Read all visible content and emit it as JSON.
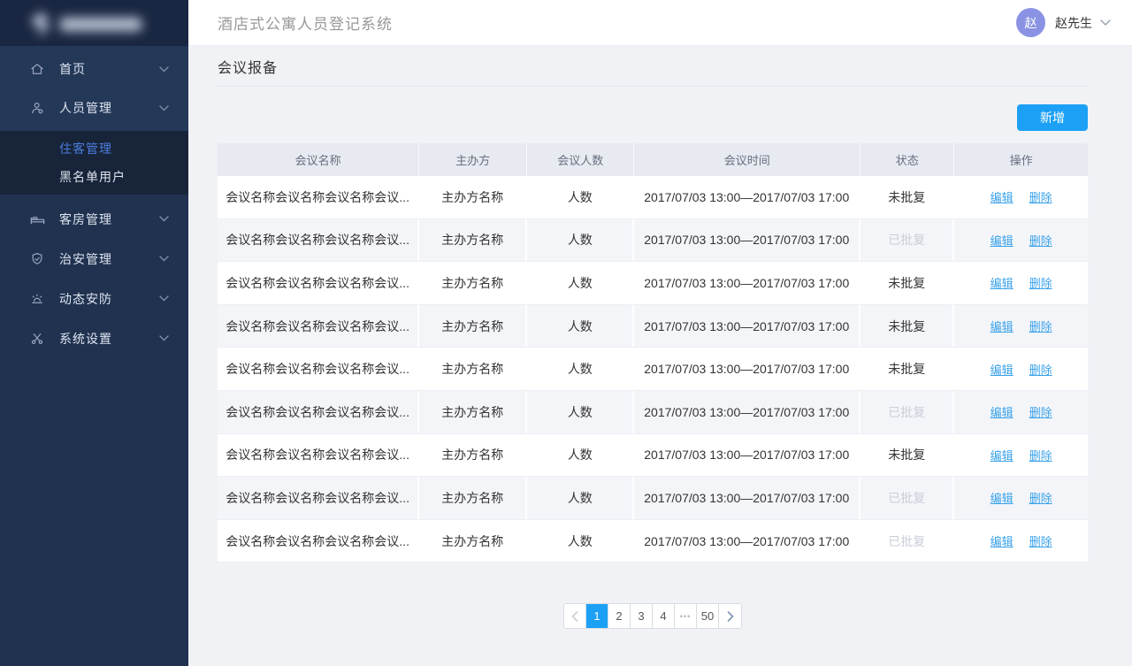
{
  "colors": {
    "primary_blue": "#1ca0f5",
    "link_blue": "#3aa2ea",
    "active_menu_blue": "#4a7ddb",
    "avatar_purple": "#8a92e3",
    "sidebar_bg": "#203250",
    "status_pending_text": "#333333",
    "status_approved_text": "#c9ced8"
  },
  "topbar": {
    "title": "酒店式公寓人员登记系统",
    "user": {
      "avatar_text": "赵",
      "name": "赵先生",
      "menu_icon": "chevron-down-icon"
    }
  },
  "sidebar": {
    "logo_icon": "blurred-logo",
    "items": [
      {
        "label": "首页",
        "icon": "home-icon"
      },
      {
        "label": "人员管理",
        "icon": "user-gear-icon"
      },
      {
        "label": "客房管理",
        "icon": "bed-icon"
      },
      {
        "label": "治安管理",
        "icon": "shield-check-icon"
      },
      {
        "label": "动态安防",
        "icon": "alarm-icon"
      },
      {
        "label": "系统设置",
        "icon": "scissors-icon"
      }
    ],
    "submenu": {
      "parent": "人员管理",
      "items": [
        {
          "label": "住客管理",
          "active": true
        },
        {
          "label": "黑名单用户",
          "active": false
        }
      ]
    }
  },
  "page": {
    "title": "会议报备",
    "add_button_label": "新增"
  },
  "table": {
    "columns": [
      "会议名称",
      "主办方",
      "会议人数",
      "会议时间",
      "状态",
      "操作"
    ],
    "action_labels": {
      "edit": "编辑",
      "delete": "删除"
    },
    "rows": [
      {
        "name": "会议名称会议名称会议名称会议...",
        "host": "主办方名称",
        "attendees": "人数",
        "time": "2017/07/03 13:00—2017/07/03 17:00",
        "status": "未批复",
        "approved": false
      },
      {
        "name": "会议名称会议名称会议名称会议...",
        "host": "主办方名称",
        "attendees": "人数",
        "time": "2017/07/03 13:00—2017/07/03 17:00",
        "status": "已批复",
        "approved": true
      },
      {
        "name": "会议名称会议名称会议名称会议...",
        "host": "主办方名称",
        "attendees": "人数",
        "time": "2017/07/03 13:00—2017/07/03 17:00",
        "status": "未批复",
        "approved": false
      },
      {
        "name": "会议名称会议名称会议名称会议...",
        "host": "主办方名称",
        "attendees": "人数",
        "time": "2017/07/03 13:00—2017/07/03 17:00",
        "status": "未批复",
        "approved": false
      },
      {
        "name": "会议名称会议名称会议名称会议...",
        "host": "主办方名称",
        "attendees": "人数",
        "time": "2017/07/03 13:00—2017/07/03 17:00",
        "status": "未批复",
        "approved": false
      },
      {
        "name": "会议名称会议名称会议名称会议...",
        "host": "主办方名称",
        "attendees": "人数",
        "time": "2017/07/03 13:00—2017/07/03 17:00",
        "status": "已批复",
        "approved": true
      },
      {
        "name": "会议名称会议名称会议名称会议...",
        "host": "主办方名称",
        "attendees": "人数",
        "time": "2017/07/03 13:00—2017/07/03 17:00",
        "status": "未批复",
        "approved": false
      },
      {
        "name": "会议名称会议名称会议名称会议...",
        "host": "主办方名称",
        "attendees": "人数",
        "time": "2017/07/03 13:00—2017/07/03 17:00",
        "status": "已批复",
        "approved": true
      },
      {
        "name": "会议名称会议名称会议名称会议...",
        "host": "主办方名称",
        "attendees": "人数",
        "time": "2017/07/03 13:00—2017/07/03 17:00",
        "status": "已批复",
        "approved": true
      }
    ]
  },
  "pagination": {
    "prev_icon": "chevron-left-icon",
    "next_icon": "chevron-right-icon",
    "pages": [
      "1",
      "2",
      "3",
      "4",
      "•••",
      "50"
    ],
    "active_page": "1"
  }
}
